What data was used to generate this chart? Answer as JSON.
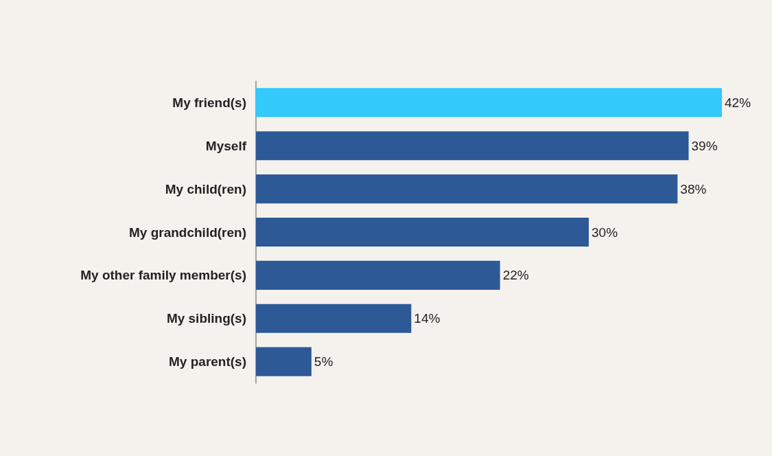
{
  "chart_data": {
    "type": "bar",
    "orientation": "horizontal",
    "categories": [
      "My friend(s)",
      "Myself",
      "My child(ren)",
      "My grandchild(ren)",
      "My other family member(s)",
      "My sibling(s)",
      "My parent(s)"
    ],
    "values": [
      42,
      39,
      38,
      30,
      22,
      14,
      5
    ],
    "colors": [
      "#33c9fb",
      "#2d5a96",
      "#2d5a96",
      "#2d5a96",
      "#2d5a96",
      "#2d5a96",
      "#2d5a96"
    ],
    "value_labels": [
      "42%",
      "39%",
      "38%",
      "30%",
      "22%",
      "14%",
      "5%"
    ]
  }
}
